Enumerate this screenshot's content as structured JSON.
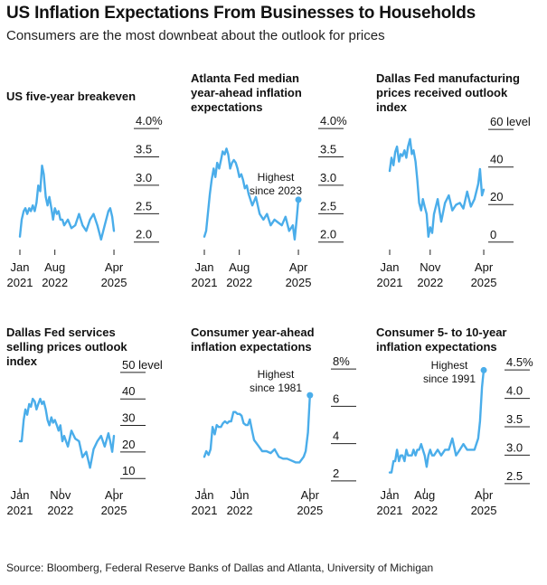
{
  "title": "US Inflation Expectations From Businesses to Households",
  "subtitle": "Consumers are the most downbeat about the outlook for prices",
  "source": "Source: Bloomberg, Federal Reserve Banks of Dallas and Atlanta, University of Michigan",
  "line_color": "#4AADEA",
  "chart_data": [
    {
      "type": "line",
      "title": "US five-year breakeven",
      "y_ticks": [
        "2.0",
        "2.5",
        "3.0",
        "3.5",
        "4.0%"
      ],
      "y_tick_values": [
        2.0,
        2.5,
        3.0,
        3.5,
        4.0
      ],
      "ylim": [
        1.9,
        4.05
      ],
      "xlim": [
        2021.0,
        2025.33
      ],
      "x_ticks": [
        {
          "line1": "Jan",
          "line2": "2021",
          "x": 2021.0
        },
        {
          "line1": "Aug",
          "line2": "2022",
          "x": 2022.58
        },
        {
          "line1": "Apr",
          "line2": "2025",
          "x": 2025.25
        }
      ],
      "x": [
        2021.0,
        2021.08,
        2021.17,
        2021.25,
        2021.33,
        2021.42,
        2021.5,
        2021.58,
        2021.67,
        2021.75,
        2021.83,
        2021.92,
        2022.0,
        2022.08,
        2022.17,
        2022.25,
        2022.33,
        2022.42,
        2022.5,
        2022.58,
        2022.67,
        2022.75,
        2022.83,
        2022.92,
        2023.0,
        2023.17,
        2023.33,
        2023.5,
        2023.67,
        2023.83,
        2024.0,
        2024.17,
        2024.33,
        2024.5,
        2024.67,
        2024.83,
        2025.0,
        2025.08,
        2025.17,
        2025.25
      ],
      "y": [
        2.0,
        2.3,
        2.45,
        2.5,
        2.4,
        2.5,
        2.45,
        2.55,
        2.45,
        2.6,
        2.9,
        2.8,
        3.25,
        3.1,
        2.7,
        2.55,
        2.7,
        2.5,
        2.3,
        2.5,
        2.4,
        2.45,
        2.3,
        2.3,
        2.2,
        2.3,
        2.15,
        2.2,
        2.4,
        2.2,
        2.1,
        2.3,
        2.4,
        2.2,
        1.95,
        2.2,
        2.45,
        2.5,
        2.35,
        2.1
      ]
    },
    {
      "type": "line",
      "title": "Atlanta Fed median year-ahead inflation expectations",
      "y_ticks": [
        "2.0",
        "2.5",
        "3.0",
        "3.5",
        "4.0%"
      ],
      "y_tick_values": [
        2.0,
        2.5,
        3.0,
        3.5,
        4.0
      ],
      "ylim": [
        1.9,
        4.05
      ],
      "xlim": [
        2021.0,
        2025.33
      ],
      "x_ticks": [
        {
          "line1": "Jan",
          "line2": "2021",
          "x": 2021.0
        },
        {
          "line1": "Aug",
          "line2": "2022",
          "x": 2022.58
        },
        {
          "line1": "Apr",
          "line2": "2025",
          "x": 2025.25
        }
      ],
      "x": [
        2021.0,
        2021.08,
        2021.17,
        2021.25,
        2021.33,
        2021.42,
        2021.5,
        2021.58,
        2021.67,
        2021.75,
        2021.83,
        2021.92,
        2022.0,
        2022.08,
        2022.17,
        2022.25,
        2022.33,
        2022.42,
        2022.5,
        2022.58,
        2022.67,
        2022.75,
        2022.83,
        2022.92,
        2023.0,
        2023.17,
        2023.33,
        2023.5,
        2023.67,
        2023.83,
        2024.0,
        2024.17,
        2024.33,
        2024.5,
        2024.67,
        2024.83,
        2025.0,
        2025.08,
        2025.17,
        2025.25
      ],
      "y": [
        2.0,
        2.1,
        2.45,
        2.75,
        3.0,
        3.2,
        3.05,
        3.3,
        3.2,
        3.35,
        3.5,
        3.45,
        3.55,
        3.45,
        3.2,
        3.3,
        3.35,
        3.3,
        3.2,
        3.05,
        3.1,
        3.0,
        2.85,
        2.9,
        2.75,
        2.55,
        2.7,
        2.4,
        2.3,
        2.4,
        2.2,
        2.3,
        2.25,
        2.2,
        2.35,
        2.1,
        2.2,
        1.95,
        2.3,
        2.65
      ],
      "annotation": {
        "lines": [
          "Highest",
          "since 2023"
        ]
      }
    },
    {
      "type": "line",
      "title": "Dallas Fed manufacturing prices received outlook index",
      "y_ticks": [
        "0",
        "20",
        "40",
        "60 level"
      ],
      "y_tick_values": [
        0,
        20,
        40,
        60
      ],
      "ylim": [
        -3,
        62
      ],
      "xlim": [
        2021.0,
        2025.33
      ],
      "x_ticks": [
        {
          "line1": "Jan",
          "line2": "2021",
          "x": 2021.0
        },
        {
          "line1": "Nov",
          "line2": "2022",
          "x": 2022.83
        },
        {
          "line1": "Apr",
          "line2": "2025",
          "x": 2025.25
        }
      ],
      "x": [
        2021.0,
        2021.08,
        2021.17,
        2021.25,
        2021.33,
        2021.42,
        2021.5,
        2021.58,
        2021.67,
        2021.75,
        2021.83,
        2021.92,
        2022.0,
        2022.08,
        2022.17,
        2022.25,
        2022.33,
        2022.42,
        2022.5,
        2022.58,
        2022.67,
        2022.75,
        2022.83,
        2022.92,
        2023.0,
        2023.17,
        2023.33,
        2023.5,
        2023.67,
        2023.83,
        2024.0,
        2024.17,
        2024.33,
        2024.5,
        2024.67,
        2024.83,
        2025.0,
        2025.08,
        2025.17,
        2025.25
      ],
      "y": [
        35,
        42,
        38,
        45,
        48,
        40,
        44,
        43,
        46,
        42,
        48,
        52,
        44,
        46,
        40,
        30,
        18,
        14,
        20,
        16,
        12,
        0,
        5,
        2,
        12,
        20,
        8,
        18,
        22,
        14,
        17,
        18,
        15,
        24,
        16,
        20,
        28,
        36,
        22,
        25
      ]
    },
    {
      "type": "line",
      "title": "Dallas Fed services selling prices outlook index",
      "y_ticks": [
        "10",
        "20",
        "30",
        "40",
        "50 level"
      ],
      "y_tick_values": [
        10,
        20,
        30,
        40,
        50
      ],
      "ylim": [
        7,
        52
      ],
      "xlim": [
        2021.0,
        2025.33
      ],
      "x_ticks": [
        {
          "line1": "Jan",
          "line2": "2021",
          "x": 2021.0
        },
        {
          "line1": "Nov",
          "line2": "2022",
          "x": 2022.83
        },
        {
          "line1": "Apr",
          "line2": "2025",
          "x": 2025.25
        }
      ],
      "x": [
        2021.0,
        2021.08,
        2021.17,
        2021.25,
        2021.33,
        2021.42,
        2021.5,
        2021.58,
        2021.67,
        2021.75,
        2021.83,
        2021.92,
        2022.0,
        2022.08,
        2022.17,
        2022.25,
        2022.33,
        2022.42,
        2022.5,
        2022.58,
        2022.67,
        2022.75,
        2022.83,
        2022.92,
        2023.0,
        2023.17,
        2023.33,
        2023.5,
        2023.67,
        2023.83,
        2024.0,
        2024.17,
        2024.33,
        2024.5,
        2024.67,
        2024.83,
        2025.0,
        2025.08,
        2025.17,
        2025.25
      ],
      "y": [
        22,
        22,
        30,
        34,
        32,
        36,
        35,
        38,
        37,
        34,
        36,
        38,
        36,
        37,
        34,
        30,
        28,
        31,
        29,
        30,
        28,
        26,
        28,
        22,
        24,
        20,
        26,
        23,
        22,
        16,
        18,
        12,
        19,
        22,
        24,
        20,
        25,
        22,
        18,
        24
      ]
    },
    {
      "type": "line",
      "title": "Consumer year-ahead inflation expectations",
      "y_ticks": [
        "2",
        "4",
        "6",
        "8%"
      ],
      "y_tick_values": [
        2,
        4,
        6,
        8
      ],
      "ylim": [
        1.7,
        8.1
      ],
      "xlim": [
        2021.0,
        2025.33
      ],
      "x_ticks": [
        {
          "line1": "Jan",
          "line2": "2021",
          "x": 2021.0
        },
        {
          "line1": "Jun",
          "line2": "2022",
          "x": 2022.42
        },
        {
          "line1": "Apr",
          "line2": "2025",
          "x": 2025.25
        }
      ],
      "x": [
        2021.0,
        2021.08,
        2021.17,
        2021.25,
        2021.33,
        2021.42,
        2021.5,
        2021.58,
        2021.67,
        2021.75,
        2021.83,
        2021.92,
        2022.0,
        2022.08,
        2022.17,
        2022.25,
        2022.33,
        2022.42,
        2022.5,
        2022.58,
        2022.67,
        2022.75,
        2022.83,
        2022.92,
        2023.0,
        2023.17,
        2023.33,
        2023.5,
        2023.67,
        2023.83,
        2024.0,
        2024.17,
        2024.33,
        2024.5,
        2024.67,
        2024.83,
        2025.0,
        2025.08,
        2025.17,
        2025.25
      ],
      "y": [
        3.0,
        3.3,
        3.1,
        3.4,
        4.6,
        4.2,
        4.7,
        4.6,
        4.6,
        4.8,
        4.9,
        4.8,
        4.9,
        4.9,
        5.4,
        5.4,
        5.3,
        5.3,
        5.2,
        4.8,
        4.7,
        4.7,
        5.0,
        4.4,
        3.9,
        3.6,
        3.3,
        3.3,
        3.2,
        3.4,
        3.0,
        2.9,
        2.9,
        2.8,
        2.7,
        2.7,
        3.0,
        3.3,
        4.3,
        6.3
      ],
      "annotation": {
        "lines": [
          "Highest",
          "since 1981"
        ]
      }
    },
    {
      "type": "line",
      "title": "Consumer 5- to 10-year inflation expectations",
      "y_ticks": [
        "2.5",
        "3.0",
        "3.5",
        "4.0",
        "4.5%"
      ],
      "y_tick_values": [
        2.5,
        3.0,
        3.5,
        4.0,
        4.5
      ],
      "ylim": [
        2.45,
        4.55
      ],
      "xlim": [
        2021.0,
        2025.33
      ],
      "x_ticks": [
        {
          "line1": "Jan",
          "line2": "2021",
          "x": 2021.0
        },
        {
          "line1": "Aug",
          "line2": "2022",
          "x": 2022.58
        },
        {
          "line1": "Apr",
          "line2": "2025",
          "x": 2025.25
        }
      ],
      "x": [
        2021.0,
        2021.08,
        2021.17,
        2021.25,
        2021.33,
        2021.42,
        2021.5,
        2021.58,
        2021.67,
        2021.75,
        2021.83,
        2021.92,
        2022.0,
        2022.08,
        2022.17,
        2022.25,
        2022.33,
        2022.42,
        2022.5,
        2022.58,
        2022.67,
        2022.75,
        2022.83,
        2022.92,
        2023.0,
        2023.17,
        2023.33,
        2023.5,
        2023.67,
        2023.83,
        2024.0,
        2024.17,
        2024.33,
        2024.5,
        2024.67,
        2024.83,
        2025.0,
        2025.08,
        2025.17,
        2025.25
      ],
      "y": [
        2.6,
        2.6,
        2.8,
        2.8,
        3.0,
        2.8,
        2.9,
        2.9,
        2.8,
        3.0,
        2.9,
        2.9,
        2.9,
        3.0,
        2.9,
        3.0,
        3.0,
        3.1,
        3.0,
        2.9,
        2.7,
        2.9,
        3.0,
        2.9,
        2.9,
        3.0,
        2.9,
        3.0,
        3.0,
        3.2,
        2.9,
        3.0,
        3.1,
        3.0,
        3.0,
        3.0,
        3.2,
        3.5,
        4.1,
        4.4
      ],
      "annotation": {
        "lines": [
          "Highest",
          "since 1991"
        ]
      }
    }
  ]
}
